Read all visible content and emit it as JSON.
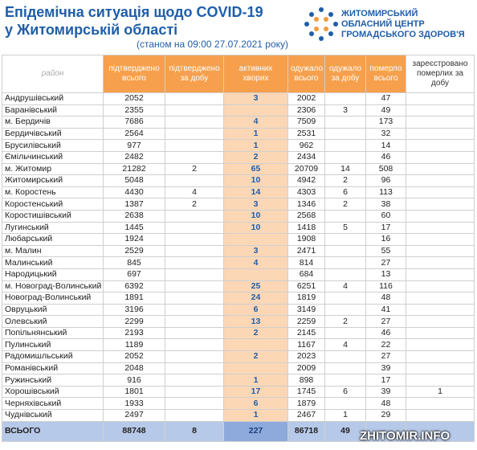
{
  "header": {
    "title_line1": "Епідемічна ситуація щодо COVID-19",
    "title_line2": "у Житомирській області",
    "subtitle": "(станом на 09:00 27.07.2021 року)",
    "org_line1": "ЖИТОМИРСЬКИЙ",
    "org_line2": "ОБЛАСНИЙ ЦЕНТР",
    "org_line3": "ГРОМАДСЬКОГО ЗДОРОВ'Я"
  },
  "table": {
    "columns": [
      "район",
      "підтверджено всього",
      "підтверджено за добу",
      "активних хворих",
      "одужало всього",
      "одужало за добу",
      "померло всього",
      "зареєстровано померлих за добу"
    ],
    "rows": [
      [
        "Андрушівський",
        2052,
        null,
        3,
        2002,
        null,
        47,
        null
      ],
      [
        "Баранівський",
        2355,
        null,
        null,
        2306,
        3,
        49,
        null
      ],
      [
        "м. Бердичів",
        7686,
        null,
        4,
        7509,
        null,
        173,
        null
      ],
      [
        "Бердичівський",
        2564,
        null,
        1,
        2531,
        null,
        32,
        null
      ],
      [
        "Брусилівський",
        977,
        null,
        1,
        962,
        null,
        14,
        null
      ],
      [
        "Ємільчинський",
        2482,
        null,
        2,
        2434,
        null,
        46,
        null
      ],
      [
        "м. Житомир",
        21282,
        2,
        65,
        20709,
        14,
        508,
        null
      ],
      [
        "Житомирський",
        5048,
        null,
        10,
        4942,
        2,
        96,
        null
      ],
      [
        "м. Коростень",
        4430,
        4,
        14,
        4303,
        6,
        113,
        null
      ],
      [
        "Коростенський",
        1387,
        2,
        3,
        1346,
        2,
        38,
        null
      ],
      [
        "Коростишівський",
        2638,
        null,
        10,
        2568,
        null,
        60,
        null
      ],
      [
        "Лугинський",
        1445,
        null,
        10,
        1418,
        5,
        17,
        null
      ],
      [
        "Любарський",
        1924,
        null,
        null,
        1908,
        null,
        16,
        null
      ],
      [
        "м. Малин",
        2529,
        null,
        3,
        2471,
        null,
        55,
        null
      ],
      [
        "Малинський",
        845,
        null,
        4,
        814,
        null,
        27,
        null
      ],
      [
        "Народицький",
        697,
        null,
        null,
        684,
        null,
        13,
        null
      ],
      [
        "м. Новоград-Волинський",
        6392,
        null,
        25,
        6251,
        4,
        116,
        null
      ],
      [
        "Новоград-Волинський",
        1891,
        null,
        24,
        1819,
        null,
        48,
        null
      ],
      [
        "Овруцький",
        3196,
        null,
        6,
        3149,
        null,
        41,
        null
      ],
      [
        "Олевський",
        2299,
        null,
        13,
        2259,
        2,
        27,
        null
      ],
      [
        "Попільнянський",
        2193,
        null,
        2,
        2145,
        null,
        46,
        null
      ],
      [
        "Пулинський",
        1189,
        null,
        null,
        1167,
        4,
        22,
        null
      ],
      [
        "Радомишльський",
        2052,
        null,
        2,
        2023,
        null,
        27,
        null
      ],
      [
        "Романівський",
        2048,
        null,
        null,
        2009,
        null,
        39,
        null
      ],
      [
        "Ружинський",
        916,
        null,
        1,
        898,
        null,
        17,
        null
      ],
      [
        "Хорошівський",
        1801,
        null,
        17,
        1745,
        6,
        39,
        1
      ],
      [
        "Черняхівський",
        1933,
        null,
        6,
        1879,
        null,
        48,
        null
      ],
      [
        "Чуднівський",
        2497,
        null,
        1,
        2467,
        1,
        29,
        null
      ]
    ],
    "total": [
      "ВСЬОГО",
      88748,
      8,
      227,
      86718,
      49,
      null,
      null
    ]
  },
  "watermark": "ZHITOMIR.INFO"
}
